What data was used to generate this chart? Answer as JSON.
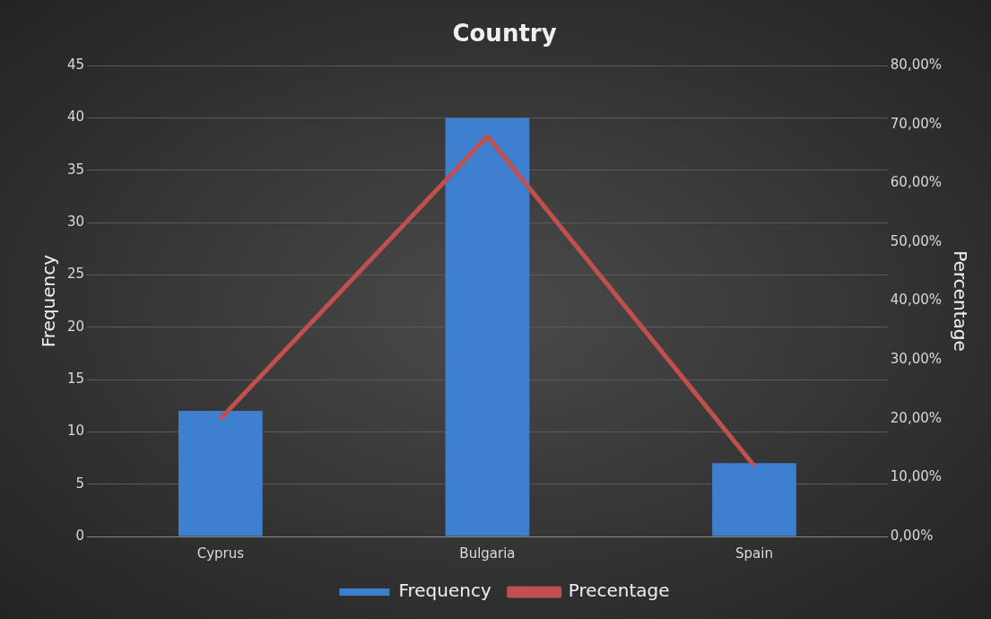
{
  "chart_data": {
    "type": "bar",
    "title": "Country",
    "ylabel": "Frequency",
    "y2label": "Percentage",
    "categories": [
      "Cyprus",
      "Bulgaria",
      "Spain"
    ],
    "series": [
      {
        "name": "Frequency",
        "color": "#3f7fd0",
        "values": [
          12,
          40,
          7
        ]
      },
      {
        "name": "Precentage",
        "type": "line",
        "axis": "y2",
        "color": "#c0504d",
        "values": [
          20,
          68,
          12
        ]
      }
    ],
    "ylim": [
      0,
      45
    ],
    "yticks": [
      0,
      5,
      10,
      15,
      20,
      25,
      30,
      35,
      40,
      45
    ],
    "y2lim": [
      0,
      80
    ],
    "y2ticks": [
      {
        "value": 0,
        "label": "0,00%"
      },
      {
        "value": 10,
        "label": "10,00%"
      },
      {
        "value": 20,
        "label": "20,00%"
      },
      {
        "value": 30,
        "label": "30,00%"
      },
      {
        "value": 40,
        "label": "40,00%"
      },
      {
        "value": 50,
        "label": "50,00%"
      },
      {
        "value": 60,
        "label": "60,00%"
      },
      {
        "value": 70,
        "label": "70,00%"
      },
      {
        "value": 80,
        "label": "80,00%"
      }
    ],
    "grid": "y",
    "legend": "bottom",
    "marker": "none"
  }
}
